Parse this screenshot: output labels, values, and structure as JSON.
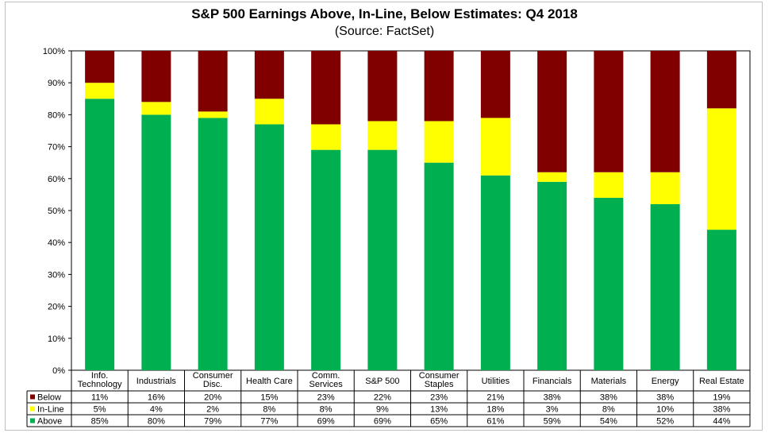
{
  "title": "S&P 500 Earnings Above, In-Line, Below Estimates: Q4 2018",
  "subtitle": "(Source: FactSet)",
  "chart_data": {
    "type": "bar",
    "stacked": true,
    "categories": [
      [
        "Info.",
        "Technology"
      ],
      [
        "Industrials"
      ],
      [
        "Consumer",
        "Disc."
      ],
      [
        "Health Care"
      ],
      [
        "Comm.",
        "Services"
      ],
      [
        "S&P 500"
      ],
      [
        "Consumer",
        "Staples"
      ],
      [
        "Utilities"
      ],
      [
        "Financials"
      ],
      [
        "Materials"
      ],
      [
        "Energy"
      ],
      [
        "Real Estate"
      ]
    ],
    "series": [
      {
        "name": "Above",
        "color": "#00b050",
        "values": [
          85,
          80,
          79,
          77,
          69,
          69,
          65,
          61,
          59,
          54,
          52,
          44
        ],
        "labels": [
          "85%",
          "80%",
          "79%",
          "77%",
          "69%",
          "69%",
          "65%",
          "61%",
          "59%",
          "54%",
          "52%",
          "44%"
        ]
      },
      {
        "name": "In-Line",
        "color": "#ffff00",
        "values": [
          5,
          4,
          2,
          8,
          8,
          9,
          13,
          18,
          3,
          8,
          10,
          38
        ],
        "labels": [
          "5%",
          "4%",
          "2%",
          "8%",
          "8%",
          "9%",
          "13%",
          "18%",
          "3%",
          "8%",
          "10%",
          "38%"
        ]
      },
      {
        "name": "Below",
        "color": "#800000",
        "values": [
          11,
          16,
          20,
          15,
          23,
          22,
          23,
          21,
          38,
          38,
          38,
          19
        ],
        "labels": [
          "11%",
          "16%",
          "20%",
          "15%",
          "23%",
          "22%",
          "23%",
          "21%",
          "38%",
          "38%",
          "38%",
          "19%"
        ]
      }
    ],
    "table_row_order": [
      "Below",
      "In-Line",
      "Above"
    ],
    "ylim": [
      0,
      100
    ],
    "yticks": [
      "0%",
      "10%",
      "20%",
      "30%",
      "40%",
      "50%",
      "60%",
      "70%",
      "80%",
      "90%",
      "100%"
    ],
    "grid": false,
    "legend": "data table below chart"
  }
}
